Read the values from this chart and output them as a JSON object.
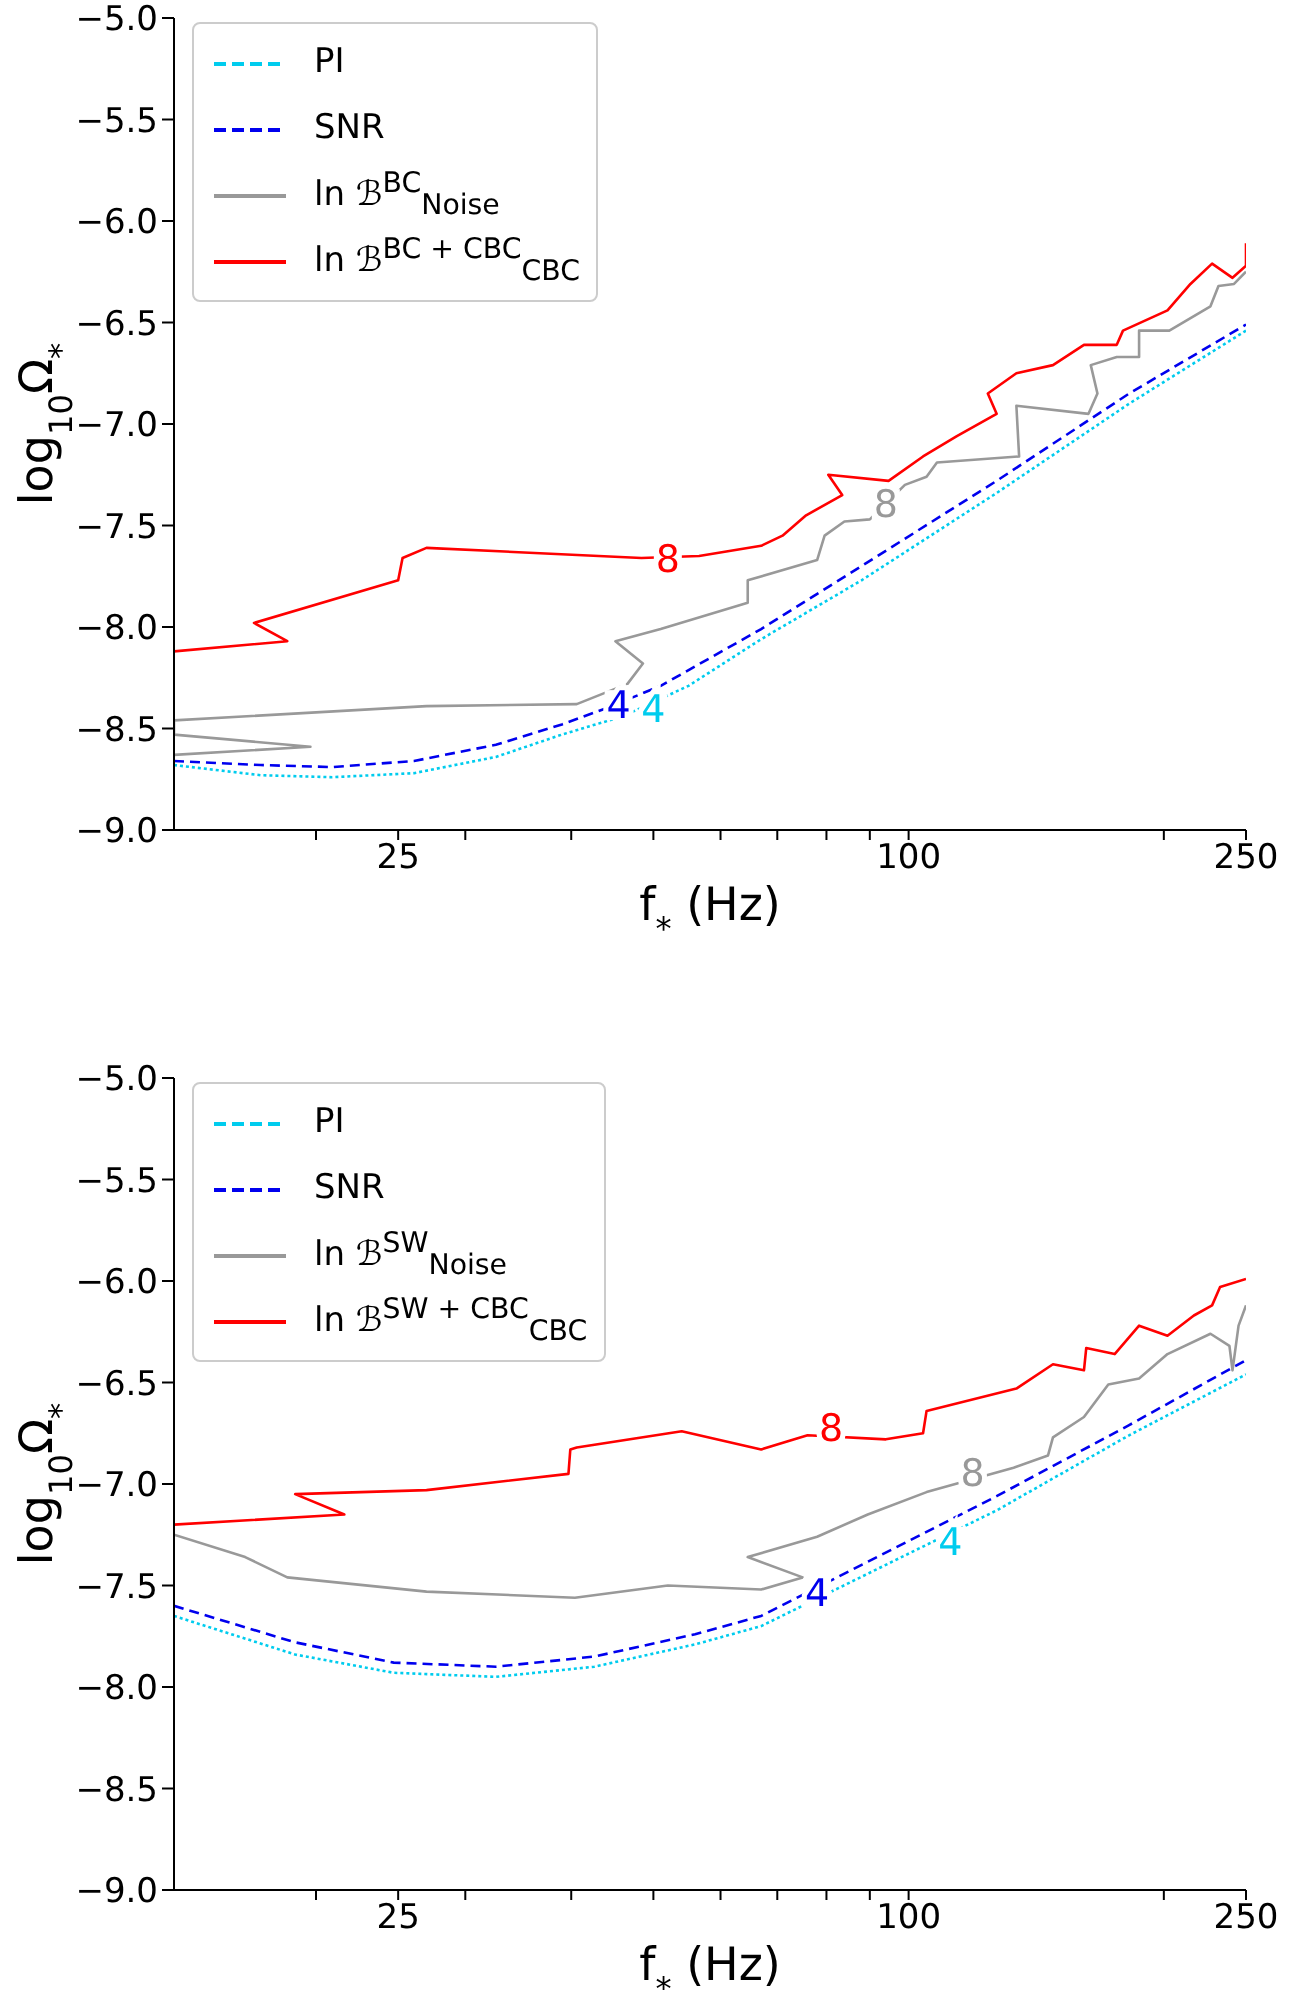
{
  "chart_data": [
    {
      "type": "line",
      "xlabel": "f$_{*}$ (Hz)",
      "ylabel": "log$_{10}$Ω$_{*}$",
      "log": "x",
      "legend": "top left",
      "xlim": [
        13.6,
        250
      ],
      "xticks": [
        {
          "value": 20,
          "label": null
        },
        25,
        {
          "value": 30,
          "label": null
        },
        {
          "value": 40,
          "label": null
        },
        {
          "value": 50,
          "label": null
        },
        {
          "value": 60,
          "label": null
        },
        {
          "value": 70,
          "label": null
        },
        {
          "value": 80,
          "label": null
        },
        {
          "value": 90,
          "label": null
        },
        100,
        {
          "value": 200,
          "label": null
        },
        250
      ],
      "ylim": [
        -9,
        -5
      ],
      "yticks": [
        {
          "value": -9,
          "label": "−9.0"
        },
        {
          "value": -8.5,
          "label": "−8.5"
        },
        {
          "value": -8,
          "label": "−8.0"
        },
        {
          "value": -7.5,
          "label": "−7.5"
        },
        {
          "value": -7,
          "label": "−7.0"
        },
        {
          "value": -6.5,
          "label": "−6.5"
        },
        {
          "value": -6,
          "label": "−6.0"
        },
        {
          "value": -5.5,
          "label": "−5.5"
        },
        {
          "value": -5,
          "label": "−5.0"
        }
      ],
      "annotations": [
        {
          "text": "4",
          "x": 50,
          "y": -8.4
        },
        {
          "text": "4",
          "x": 45.5,
          "y": -8.38
        },
        {
          "text": "8",
          "x": 94,
          "y": -7.39
        },
        {
          "text": "8",
          "x": 52,
          "y": -7.66
        }
      ],
      "series": [
        {
          "name": "PI",
          "color": "#00ccee",
          "line_style": "dotted",
          "x": [
            13.6,
            17.2,
            20.9,
            26.1,
            32.6,
            39,
            46,
            55,
            67,
            88,
            127,
            182,
            250
          ],
          "values": [
            -8.68,
            -8.73,
            -8.74,
            -8.72,
            -8.64,
            -8.53,
            -8.44,
            -8.29,
            -8.06,
            -7.77,
            -7.34,
            -6.9,
            -6.54
          ]
        },
        {
          "name": "SNR",
          "color": "#0000ee",
          "line_style": "dashed",
          "x": [
            13.6,
            17.2,
            20.9,
            26.1,
            32.6,
            39,
            44,
            51,
            67,
            88,
            127,
            182,
            250
          ],
          "values": [
            -8.66,
            -8.68,
            -8.69,
            -8.66,
            -8.58,
            -8.48,
            -8.4,
            -8.29,
            -8.01,
            -7.7,
            -7.28,
            -6.85,
            -6.51
          ]
        },
        {
          "name": "ln ℬ$^{BC}$$_{Noise}$",
          "color": "#999999",
          "line_style": "solid",
          "x": [
            13.6,
            19.7,
            13.6,
            13.6,
            27,
            40.6,
            46.6,
            48.6,
            45.1,
            51,
            64.6,
            64.6,
            78,
            79.6,
            84,
            90,
            99,
            105,
            108,
            135,
            134,
            163,
            167,
            164,
            176,
            187,
            187,
            203,
            227,
            232,
            242,
            250
          ],
          "values": [
            -8.63,
            -8.59,
            -8.53,
            -8.46,
            -8.39,
            -8.38,
            -8.28,
            -8.18,
            -8.07,
            -8.01,
            -7.88,
            -7.77,
            -7.67,
            -7.55,
            -7.48,
            -7.47,
            -7.3,
            -7.26,
            -7.19,
            -7.16,
            -6.91,
            -6.95,
            -6.85,
            -6.71,
            -6.67,
            -6.67,
            -6.54,
            -6.54,
            -6.42,
            -6.32,
            -6.31,
            -6.25
          ]
        },
        {
          "name": "ln ℬ$^{BC + CBC}$$_{CBC}$",
          "color": "#ff0000",
          "line_style": "solid",
          "x": [
            13.6,
            18.5,
            16.9,
            25,
            25.3,
            27,
            48.4,
            56.6,
            67,
            71,
            75.7,
            83.5,
            80.4,
            94.7,
            104,
            114,
            127,
            124,
            134,
            148,
            161,
            176,
            179,
            202,
            215,
            228,
            241,
            250,
            250
          ],
          "values": [
            -8.12,
            -8.07,
            -7.98,
            -7.77,
            -7.66,
            -7.61,
            -7.66,
            -7.65,
            -7.6,
            -7.55,
            -7.45,
            -7.35,
            -7.25,
            -7.28,
            -7.16,
            -7.06,
            -6.95,
            -6.85,
            -6.75,
            -6.71,
            -6.61,
            -6.61,
            -6.54,
            -6.44,
            -6.31,
            -6.21,
            -6.28,
            -6.22,
            -6.11
          ]
        }
      ]
    },
    {
      "type": "line",
      "xlabel": "f$_{*}$ (Hz)",
      "ylabel": "log$_{10}$Ω$_{*}$",
      "log": "x",
      "legend": "top left",
      "xlim": [
        13.6,
        250
      ],
      "xticks": [
        {
          "value": 20,
          "label": null
        },
        25,
        {
          "value": 30,
          "label": null
        },
        {
          "value": 40,
          "label": null
        },
        {
          "value": 50,
          "label": null
        },
        {
          "value": 60,
          "label": null
        },
        {
          "value": 70,
          "label": null
        },
        {
          "value": 80,
          "label": null
        },
        {
          "value": 90,
          "label": null
        },
        100,
        {
          "value": 200,
          "label": null
        },
        250
      ],
      "ylim": [
        -9,
        -5
      ],
      "yticks": [
        {
          "value": -9,
          "label": "−9.0"
        },
        {
          "value": -8.5,
          "label": "−8.5"
        },
        {
          "value": -8,
          "label": "−8.0"
        },
        {
          "value": -7.5,
          "label": "−7.5"
        },
        {
          "value": -7,
          "label": "−7.0"
        },
        {
          "value": -6.5,
          "label": "−6.5"
        },
        {
          "value": -6,
          "label": "−6.0"
        },
        {
          "value": -5.5,
          "label": "−5.5"
        },
        {
          "value": -5,
          "label": "−5.0"
        }
      ],
      "annotations": [
        {
          "text": "4",
          "x": 112,
          "y": -7.28
        },
        {
          "text": "4",
          "x": 78,
          "y": -7.53
        },
        {
          "text": "8",
          "x": 119,
          "y": -6.94
        },
        {
          "text": "8",
          "x": 81,
          "y": -6.72
        }
      ],
      "series": [
        {
          "name": "PI",
          "color": "#00ccee",
          "line_style": "dotted",
          "x": [
            13.6,
            18.9,
            24.7,
            32.6,
            42.6,
            56,
            67,
            127,
            182,
            250
          ],
          "values": [
            -7.65,
            -7.84,
            -7.93,
            -7.95,
            -7.9,
            -7.79,
            -7.7,
            -7.13,
            -6.76,
            -6.46
          ]
        },
        {
          "name": "SNR",
          "color": "#0000ee",
          "line_style": "dashed",
          "x": [
            13.6,
            18.9,
            24.7,
            32.6,
            42.6,
            56,
            67,
            127,
            182,
            250
          ],
          "values": [
            -7.6,
            -7.78,
            -7.88,
            -7.9,
            -7.85,
            -7.74,
            -7.65,
            -7.06,
            -6.71,
            -6.39
          ]
        },
        {
          "name": "ln ℬ$^{SW}$$_{Noise}$",
          "color": "#999999",
          "line_style": "solid",
          "x": [
            13.6,
            16.5,
            18.5,
            27,
            40.4,
            52,
            67,
            75,
            64.6,
            78,
            89.5,
            105,
            133,
            146,
            148,
            161,
            172,
            187,
            202,
            227,
            239,
            241,
            245,
            250
          ],
          "values": [
            -7.25,
            -7.36,
            -7.46,
            -7.53,
            -7.56,
            -7.5,
            -7.52,
            -7.46,
            -7.36,
            -7.26,
            -7.15,
            -7.04,
            -6.92,
            -6.86,
            -6.77,
            -6.67,
            -6.51,
            -6.48,
            -6.36,
            -6.26,
            -6.32,
            -6.44,
            -6.22,
            -6.12
          ]
        },
        {
          "name": "ln ℬ$^{SW + CBC}$$_{CBC}$",
          "color": "#ff0000",
          "line_style": "solid",
          "x": [
            13.6,
            21.6,
            18.9,
            27,
            39.7,
            39.9,
            40.6,
            54,
            67,
            76,
            94,
            104,
            105,
            134,
            148,
            161,
            162,
            175,
            187,
            202,
            217,
            228,
            233,
            250
          ],
          "values": [
            -7.2,
            -7.15,
            -7.05,
            -7.03,
            -6.95,
            -6.83,
            -6.82,
            -6.74,
            -6.83,
            -6.76,
            -6.78,
            -6.75,
            -6.64,
            -6.53,
            -6.41,
            -6.44,
            -6.33,
            -6.36,
            -6.22,
            -6.27,
            -6.17,
            -6.12,
            -6.03,
            -5.99
          ]
        }
      ]
    }
  ]
}
